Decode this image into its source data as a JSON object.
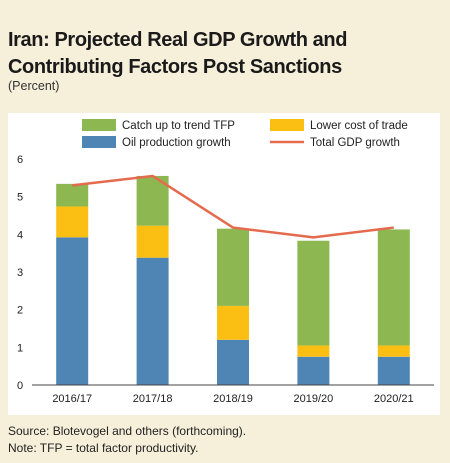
{
  "header": {
    "title": "Iran: Projected Real GDP Growth and Contributing Factors Post Sanctions",
    "subtitle": "(Percent)"
  },
  "footer": {
    "source": "Source: Blotevogel and others (forthcoming).",
    "note": "Note: TFP = total factor productivity."
  },
  "chart_data": {
    "type": "bar",
    "stacked": true,
    "categories": [
      "2016/17",
      "2017/18",
      "2018/19",
      "2019/20",
      "2020/21"
    ],
    "series": [
      {
        "name": "Oil production growth",
        "kind": "bar",
        "color": "#4e85b5",
        "values": [
          3.92,
          3.38,
          1.2,
          0.75,
          0.75
        ]
      },
      {
        "name": "Lower cost of trade",
        "kind": "bar",
        "color": "#fbbf14",
        "values": [
          0.82,
          0.85,
          0.9,
          0.3,
          0.3
        ]
      },
      {
        "name": "Catch up to trend TFP",
        "kind": "bar",
        "color": "#8cb751",
        "values": [
          0.6,
          1.32,
          2.05,
          2.78,
          3.08
        ]
      },
      {
        "name": "Total GDP growth",
        "kind": "line",
        "color": "#e56b4e",
        "values": [
          5.3,
          5.55,
          4.18,
          3.92,
          4.18
        ]
      }
    ],
    "ylim": [
      0,
      6
    ],
    "yticks": [
      0,
      1,
      2,
      3,
      4,
      5,
      6
    ],
    "legend": {
      "position": "top",
      "items": [
        "Catch up to trend TFP",
        "Lower cost of trade",
        "Oil production growth",
        "Total GDP growth"
      ]
    },
    "grid": false,
    "title": "",
    "xlabel": "",
    "ylabel": ""
  }
}
